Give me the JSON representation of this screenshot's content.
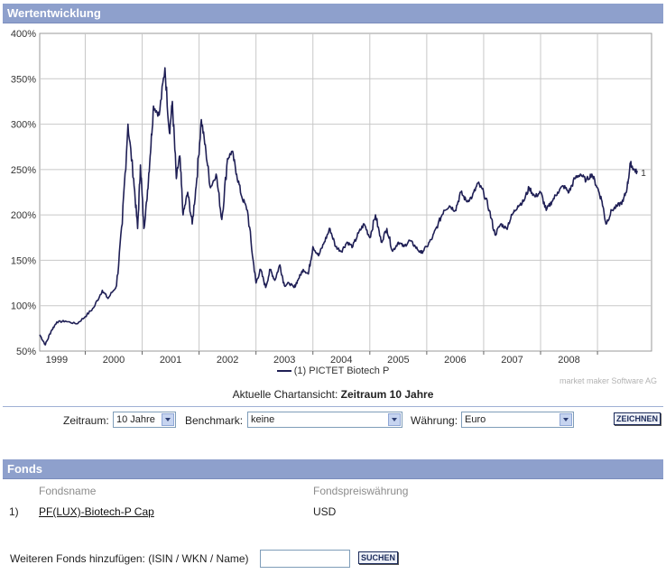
{
  "header": {
    "title": "Wertentwicklung"
  },
  "chart_data": {
    "type": "line",
    "ylim": [
      50,
      400
    ],
    "y_ticks": [
      "50%",
      "100%",
      "150%",
      "200%",
      "250%",
      "300%",
      "350%",
      "400%"
    ],
    "y_tick_values": [
      50,
      100,
      150,
      200,
      250,
      300,
      350,
      400
    ],
    "xlim": [
      1998.2,
      2008.95
    ],
    "x_tick_labels": [
      "1999",
      "2000",
      "2001",
      "2002",
      "2003",
      "2004",
      "2005",
      "2006",
      "2007",
      "2008"
    ],
    "grid": true,
    "series": [
      {
        "name": "PICTET Biotech P",
        "marker_label": "1",
        "color": "#1f1f55",
        "x": [
          1998.2,
          1998.3,
          1998.4,
          1998.5,
          1998.65,
          1998.85,
          1999.0,
          1999.15,
          1999.3,
          1999.4,
          1999.55,
          1999.65,
          1999.75,
          1999.85,
          1999.92,
          1999.97,
          2000.03,
          2000.08,
          2000.14,
          2000.2,
          2000.3,
          2000.4,
          2000.48,
          2000.53,
          2000.6,
          2000.66,
          2000.72,
          2000.8,
          2000.88,
          2000.96,
          2001.04,
          2001.12,
          2001.2,
          2001.3,
          2001.4,
          2001.5,
          2001.58,
          2001.66,
          2001.75,
          2001.85,
          2001.95,
          2002.0,
          2002.08,
          2002.17,
          2002.25,
          2002.33,
          2002.42,
          2002.5,
          2002.58,
          2002.67,
          2002.75,
          2002.83,
          2002.92,
          2003.0,
          2003.1,
          2003.2,
          2003.3,
          2003.4,
          2003.5,
          2003.6,
          2003.7,
          2003.8,
          2003.9,
          2004.0,
          2004.1,
          2004.2,
          2004.3,
          2004.4,
          2004.5,
          2004.6,
          2004.7,
          2004.8,
          2004.9,
          2005.0,
          2005.1,
          2005.2,
          2005.3,
          2005.4,
          2005.5,
          2005.6,
          2005.7,
          2005.8,
          2005.9,
          2006.0,
          2006.1,
          2006.2,
          2006.3,
          2006.4,
          2006.5,
          2006.6,
          2006.7,
          2006.8,
          2006.9,
          2007.0,
          2007.1,
          2007.2,
          2007.3,
          2007.4,
          2007.5,
          2007.6,
          2007.7,
          2007.8,
          2007.9,
          2008.0,
          2008.08,
          2008.15,
          2008.25,
          2008.35,
          2008.45,
          2008.52,
          2008.58,
          2008.64,
          2008.7
        ],
        "y": [
          68,
          57,
          72,
          82,
          83,
          80,
          88,
          98,
          117,
          108,
          122,
          190,
          300,
          240,
          185,
          255,
          185,
          215,
          265,
          320,
          310,
          362,
          290,
          325,
          240,
          265,
          200,
          225,
          190,
          240,
          305,
          270,
          230,
          245,
          195,
          262,
          270,
          245,
          220,
          205,
          150,
          125,
          140,
          120,
          140,
          128,
          145,
          122,
          125,
          120,
          130,
          140,
          135,
          165,
          155,
          170,
          185,
          165,
          160,
          170,
          165,
          180,
          190,
          175,
          200,
          170,
          185,
          160,
          170,
          165,
          172,
          165,
          158,
          165,
          175,
          190,
          205,
          210,
          205,
          225,
          215,
          220,
          235,
          225,
          205,
          178,
          190,
          185,
          200,
          210,
          215,
          230,
          220,
          225,
          205,
          215,
          225,
          232,
          225,
          240,
          245,
          238,
          245,
          230,
          215,
          190,
          205,
          210,
          215,
          230,
          257,
          250,
          247
        ]
      }
    ]
  },
  "legend": {
    "prefix": "(1)",
    "label": "PICTET Biotech P"
  },
  "credit": "market maker Software AG",
  "chart_view": {
    "label": "Aktuelle Chartansicht:",
    "value": "Zeitraum 10 Jahre"
  },
  "controls": {
    "zeitraum_label": "Zeitraum:",
    "zeitraum_value": "10 Jahre",
    "benchmark_label": "Benchmark:",
    "benchmark_value": "keine",
    "waehrung_label": "Währung:",
    "waehrung_value": "Euro",
    "zeichnen_label": "ZEICHNEN"
  },
  "fonds": {
    "title": "Fonds",
    "col_name": "Fondsname",
    "col_currency": "Fondspreiswährung",
    "rows": [
      {
        "index": "1)",
        "name": "PF(LUX)-Biotech-P Cap",
        "currency": "USD"
      }
    ],
    "add_label": "Weiteren Fonds hinzufügen: (ISIN / WKN / Name)",
    "search_label": "SUCHEN"
  }
}
